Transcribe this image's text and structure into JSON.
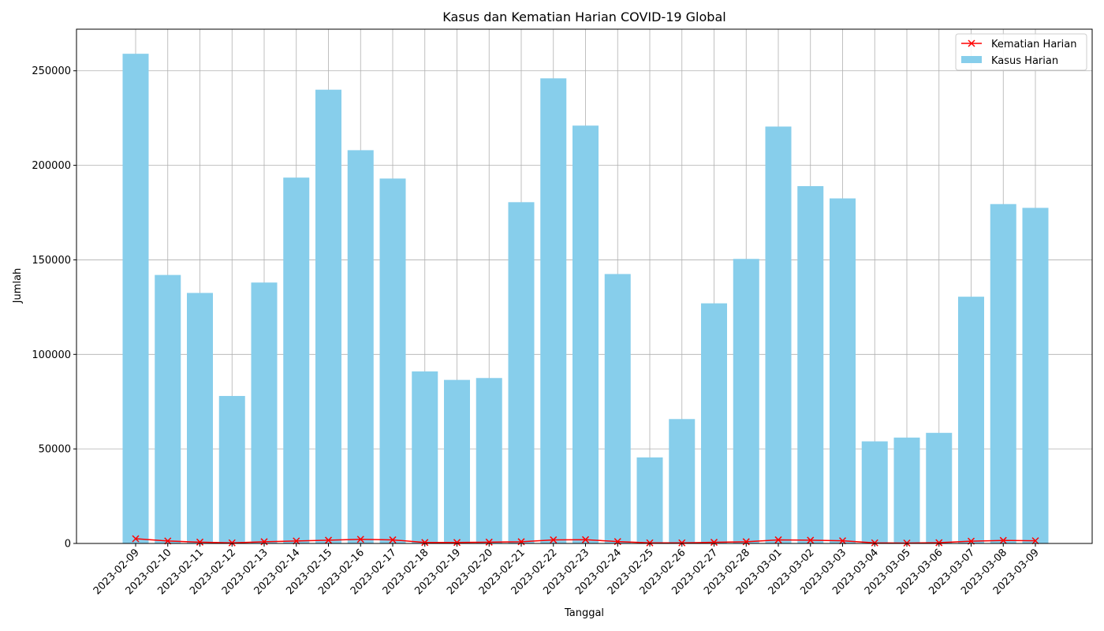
{
  "chart_data": {
    "type": "bar",
    "title": "Kasus dan Kematian Harian COVID-19 Global",
    "xlabel": "Tanggal",
    "ylabel": "Jumlah",
    "ylim": [
      0,
      272000
    ],
    "yticks": [
      0,
      50000,
      100000,
      150000,
      200000,
      250000
    ],
    "grid": true,
    "legend_placement": "top-right",
    "categories": [
      "2023-02-09",
      "2023-02-10",
      "2023-02-11",
      "2023-02-12",
      "2023-02-13",
      "2023-02-14",
      "2023-02-15",
      "2023-02-16",
      "2023-02-17",
      "2023-02-18",
      "2023-02-19",
      "2023-02-20",
      "2023-02-21",
      "2023-02-22",
      "2023-02-23",
      "2023-02-24",
      "2023-02-25",
      "2023-02-26",
      "2023-02-27",
      "2023-02-28",
      "2023-03-01",
      "2023-03-02",
      "2023-03-03",
      "2023-03-04",
      "2023-03-05",
      "2023-03-06",
      "2023-03-07",
      "2023-03-08",
      "2023-03-09"
    ],
    "series": [
      {
        "name": "Kasus Harian",
        "kind": "bar",
        "color": "#87ceeb",
        "values": [
          259000,
          142000,
          132500,
          78000,
          138000,
          193500,
          240000,
          208000,
          193000,
          91000,
          86500,
          87500,
          180500,
          246000,
          221000,
          142500,
          45500,
          65800,
          127000,
          150500,
          220500,
          189000,
          182500,
          54000,
          56000,
          58500,
          130500,
          179500,
          177500
        ]
      },
      {
        "name": "Kematian Harian",
        "kind": "line",
        "color": "#ff0000",
        "marker": "x",
        "values": [
          2500,
          1300,
          700,
          300,
          900,
          1300,
          1700,
          2200,
          1900,
          500,
          500,
          700,
          900,
          1900,
          2000,
          1000,
          300,
          300,
          600,
          900,
          1900,
          1700,
          1400,
          300,
          200,
          400,
          1200,
          1600,
          1400
        ]
      }
    ]
  }
}
